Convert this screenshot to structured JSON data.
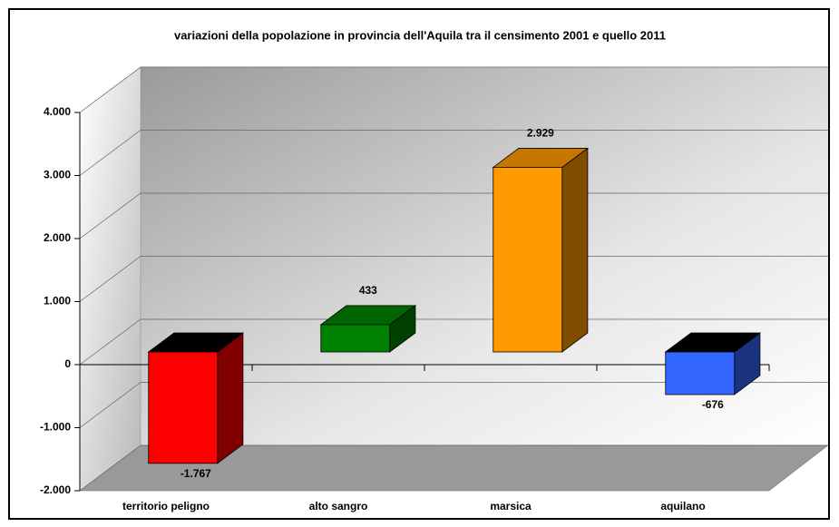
{
  "chart_data": {
    "type": "bar",
    "title": "variazioni della popolazione in provincia dell'Aquila tra il censimento 2001 e quello 2011",
    "categories": [
      "territorio peligno",
      "alto sangro",
      "marsica",
      "aquilano"
    ],
    "values": [
      -1767,
      433,
      2929,
      -676
    ],
    "value_labels": [
      "-1.767",
      "433",
      "2.929",
      "-676"
    ],
    "colors": [
      "#ff0000",
      "#008000",
      "#ff9900",
      "#3366ff"
    ],
    "ylim": [
      -2000,
      4000
    ],
    "yticks": [
      {
        "value": -2000,
        "label": "-2.000"
      },
      {
        "value": -1000,
        "label": "-1.000"
      },
      0,
      {
        "value": 1000,
        "label": "1.000"
      },
      {
        "value": 2000,
        "label": "2.000"
      },
      {
        "value": 3000,
        "label": "3.000"
      },
      {
        "value": 4000,
        "label": "4.000"
      }
    ],
    "grid": true
  }
}
